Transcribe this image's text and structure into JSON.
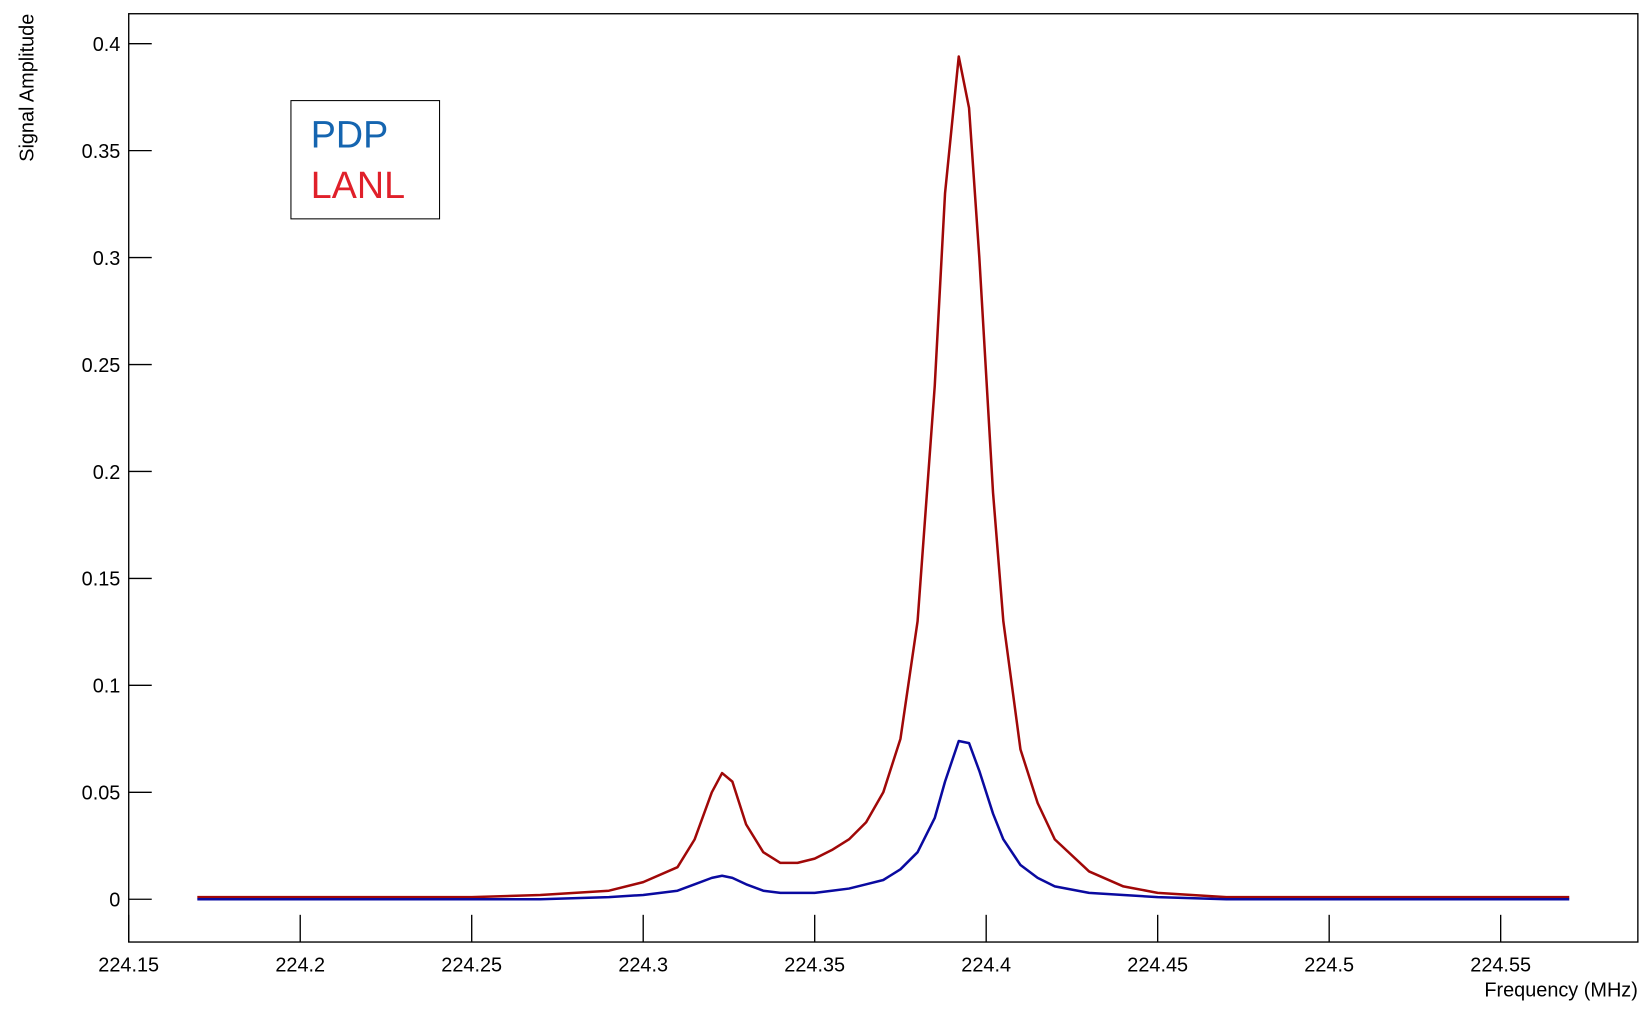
{
  "chart_data": {
    "type": "line",
    "x_label": "Frequency (MHz)",
    "y_label": "Signal Amplitude",
    "x": [
      224.17,
      224.2,
      224.25,
      224.27,
      224.29,
      224.3,
      224.31,
      224.315,
      224.32,
      224.323,
      224.326,
      224.33,
      224.335,
      224.34,
      224.345,
      224.35,
      224.355,
      224.36,
      224.365,
      224.37,
      224.375,
      224.38,
      224.385,
      224.388,
      224.392,
      224.395,
      224.398,
      224.402,
      224.405,
      224.41,
      224.415,
      224.42,
      224.43,
      224.44,
      224.45,
      224.47,
      224.5,
      224.57
    ],
    "series": [
      {
        "name": "PDP",
        "color": "#0a0aa0",
        "text_color": "#1565b0",
        "values": [
          0,
          0,
          0,
          0,
          0.001,
          0.002,
          0.004,
          0.007,
          0.01,
          0.011,
          0.01,
          0.007,
          0.004,
          0.003,
          0.003,
          0.003,
          0.004,
          0.005,
          0.007,
          0.009,
          0.014,
          0.022,
          0.038,
          0.055,
          0.074,
          0.073,
          0.06,
          0.04,
          0.028,
          0.016,
          0.01,
          0.006,
          0.003,
          0.002,
          0.001,
          0,
          0,
          0
        ]
      },
      {
        "name": "LANL",
        "color": "#a00808",
        "text_color": "#e0202a",
        "values": [
          0.001,
          0.001,
          0.001,
          0.002,
          0.004,
          0.008,
          0.015,
          0.028,
          0.05,
          0.059,
          0.055,
          0.035,
          0.022,
          0.017,
          0.017,
          0.019,
          0.023,
          0.028,
          0.036,
          0.05,
          0.075,
          0.13,
          0.24,
          0.33,
          0.394,
          0.37,
          0.3,
          0.19,
          0.13,
          0.07,
          0.045,
          0.028,
          0.013,
          0.006,
          0.003,
          0.001,
          0.001,
          0.001
        ]
      }
    ],
    "xlim": [
      224.15,
      224.59
    ],
    "xticks": [
      224.15,
      224.2,
      224.25,
      224.3,
      224.35,
      224.4,
      224.45,
      224.5,
      224.55
    ],
    "ylim": [
      -0.02,
      0.414
    ],
    "yticks": [
      0,
      0.05,
      0.1,
      0.15,
      0.2,
      0.25,
      0.3,
      0.35,
      0.4
    ]
  }
}
